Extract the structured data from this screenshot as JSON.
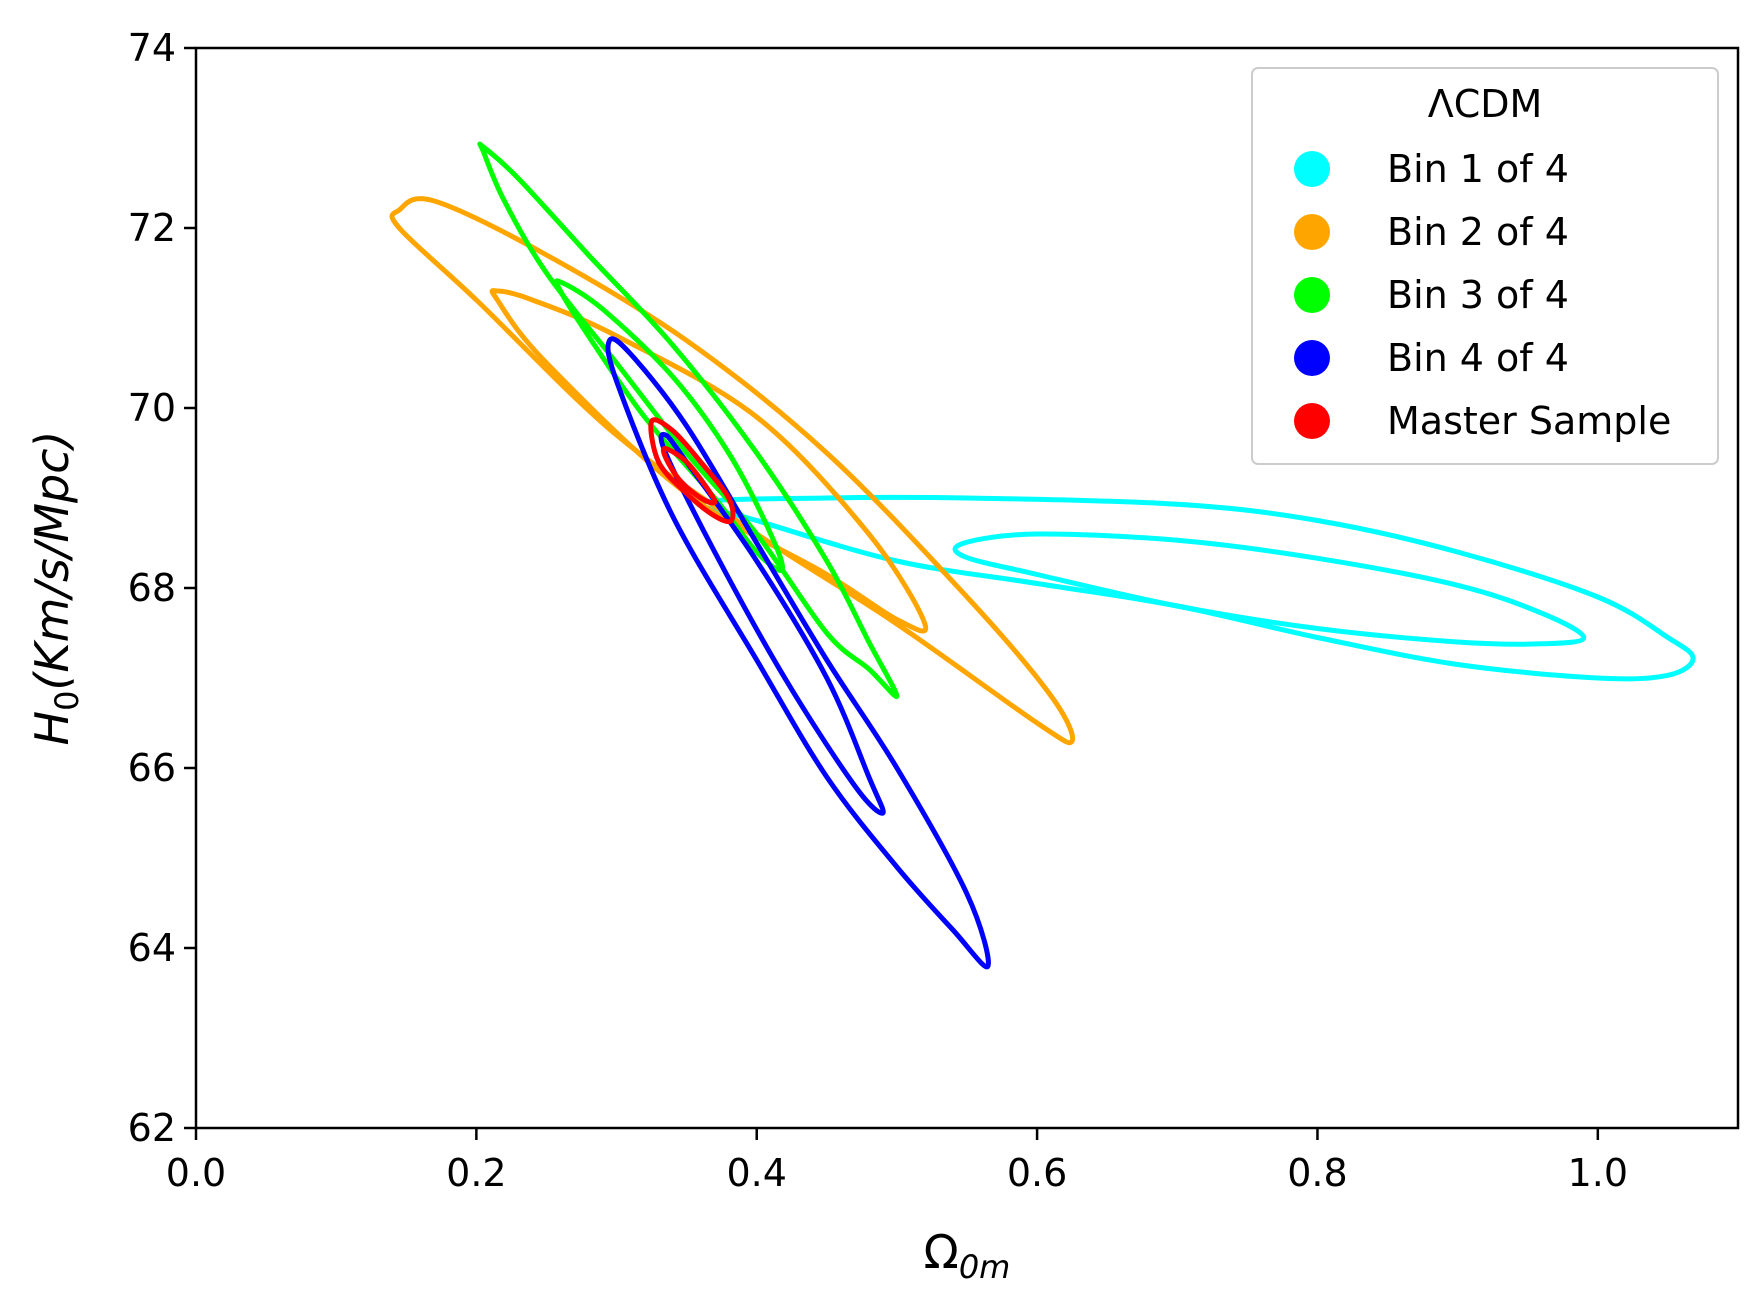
{
  "chart_data": {
    "type": "contour",
    "title": "",
    "xlabel": "Ω",
    "xlabel_sub": "0m",
    "ylabel_prefix": "H",
    "ylabel_sub": "0",
    "ylabel_suffix": "(Km/s/Mpc)",
    "xlim": [
      0.0,
      1.1
    ],
    "ylim": [
      62,
      74
    ],
    "xticks": [
      0.0,
      0.2,
      0.4,
      0.6,
      0.8,
      1.0
    ],
    "xtick_labels": [
      "0.0",
      "0.2",
      "0.4",
      "0.6",
      "0.8",
      "1.0"
    ],
    "yticks": [
      62,
      64,
      66,
      68,
      70,
      72,
      74
    ],
    "ytick_labels": [
      "62",
      "64",
      "66",
      "68",
      "70",
      "72",
      "74"
    ],
    "grid": false,
    "legend": {
      "title": "ΛCDM",
      "placement": "top-right",
      "entries": [
        {
          "label": "Bin 1 of 4",
          "color": "#00ffff"
        },
        {
          "label": "Bin 2 of 4",
          "color": "#ffa500"
        },
        {
          "label": "Bin 3 of 4",
          "color": "#00ff00"
        },
        {
          "label": "Bin 4 of 4",
          "color": "#0000ff"
        },
        {
          "label": "Master Sample",
          "color": "#ff0000"
        }
      ]
    },
    "series": [
      {
        "color": "#00ffff",
        "contours": [
          [
            [
              0.548,
              68.5
            ],
            [
              0.6,
              68.6
            ],
            [
              0.7,
              68.53
            ],
            [
              0.8,
              68.33
            ],
            [
              0.9,
              68.03
            ],
            [
              0.96,
              67.72
            ],
            [
              0.99,
              67.45
            ],
            [
              0.96,
              67.38
            ],
            [
              0.9,
              67.4
            ],
            [
              0.8,
              67.55
            ],
            [
              0.7,
              67.8
            ],
            [
              0.6,
              68.15
            ],
            [
              0.548,
              68.35
            ],
            [
              0.548,
              68.5
            ]
          ],
          [
            [
              0.36,
              68.95
            ],
            [
              0.45,
              69.0
            ],
            [
              0.55,
              69.0
            ],
            [
              0.7,
              68.93
            ],
            [
              0.8,
              68.75
            ],
            [
              0.9,
              68.4
            ],
            [
              1.0,
              67.9
            ],
            [
              1.05,
              67.45
            ],
            [
              1.068,
              67.22
            ],
            [
              1.05,
              67.03
            ],
            [
              1.0,
              67.0
            ],
            [
              0.9,
              67.15
            ],
            [
              0.8,
              67.45
            ],
            [
              0.7,
              67.8
            ],
            [
              0.6,
              68.05
            ],
            [
              0.5,
              68.3
            ],
            [
              0.4,
              68.75
            ],
            [
              0.36,
              68.95
            ]
          ]
        ]
      },
      {
        "color": "#ffa500",
        "contours": [
          [
            [
              0.215,
              71.3
            ],
            [
              0.24,
              71.2
            ],
            [
              0.3,
              70.8
            ],
            [
              0.4,
              69.9
            ],
            [
              0.48,
              68.6
            ],
            [
              0.52,
              67.6
            ],
            [
              0.5,
              67.65
            ],
            [
              0.45,
              68.15
            ],
            [
              0.35,
              69.05
            ],
            [
              0.25,
              70.5
            ],
            [
              0.215,
              71.2
            ],
            [
              0.215,
              71.3
            ]
          ],
          [
            [
              0.145,
              72.2
            ],
            [
              0.17,
              72.3
            ],
            [
              0.25,
              71.7
            ],
            [
              0.35,
              70.75
            ],
            [
              0.45,
              69.5
            ],
            [
              0.55,
              67.9
            ],
            [
              0.61,
              66.8
            ],
            [
              0.625,
              66.3
            ],
            [
              0.6,
              66.5
            ],
            [
              0.5,
              67.6
            ],
            [
              0.4,
              68.6
            ],
            [
              0.3,
              69.7
            ],
            [
              0.2,
              71.2
            ],
            [
              0.145,
              72.0
            ],
            [
              0.145,
              72.2
            ]
          ]
        ]
      },
      {
        "color": "#00ff00",
        "contours": [
          [
            [
              0.26,
              71.4
            ],
            [
              0.29,
              71.1
            ],
            [
              0.34,
              70.35
            ],
            [
              0.38,
              69.5
            ],
            [
              0.41,
              68.6
            ],
            [
              0.418,
              68.2
            ],
            [
              0.4,
              68.4
            ],
            [
              0.37,
              69.0
            ],
            [
              0.32,
              69.9
            ],
            [
              0.28,
              70.8
            ],
            [
              0.26,
              71.3
            ],
            [
              0.26,
              71.4
            ]
          ],
          [
            [
              0.205,
              72.9
            ],
            [
              0.23,
              72.55
            ],
            [
              0.28,
              71.7
            ],
            [
              0.34,
              70.7
            ],
            [
              0.4,
              69.5
            ],
            [
              0.45,
              68.3
            ],
            [
              0.48,
              67.4
            ],
            [
              0.5,
              66.8
            ],
            [
              0.48,
              67.1
            ],
            [
              0.45,
              67.5
            ],
            [
              0.4,
              68.6
            ],
            [
              0.35,
              69.5
            ],
            [
              0.3,
              70.5
            ],
            [
              0.25,
              71.5
            ],
            [
              0.22,
              72.3
            ],
            [
              0.205,
              72.85
            ]
          ]
        ]
      },
      {
        "color": "#0000ff",
        "contours": [
          [
            [
              0.335,
              69.7
            ],
            [
              0.35,
              69.4
            ],
            [
              0.4,
              68.3
            ],
            [
              0.45,
              67.0
            ],
            [
              0.48,
              65.9
            ],
            [
              0.49,
              65.5
            ],
            [
              0.47,
              65.8
            ],
            [
              0.42,
              67.0
            ],
            [
              0.37,
              68.4
            ],
            [
              0.335,
              69.5
            ],
            [
              0.335,
              69.7
            ]
          ],
          [
            [
              0.295,
              70.75
            ],
            [
              0.31,
              70.6
            ],
            [
              0.35,
              69.8
            ],
            [
              0.4,
              68.5
            ],
            [
              0.45,
              67.2
            ],
            [
              0.5,
              66.0
            ],
            [
              0.55,
              64.6
            ],
            [
              0.565,
              63.8
            ],
            [
              0.54,
              64.2
            ],
            [
              0.5,
              64.9
            ],
            [
              0.45,
              65.9
            ],
            [
              0.4,
              67.2
            ],
            [
              0.34,
              68.8
            ],
            [
              0.3,
              70.3
            ],
            [
              0.295,
              70.75
            ]
          ]
        ]
      },
      {
        "color": "#ff0000",
        "contours": [
          [
            [
              0.335,
              69.55
            ],
            [
              0.35,
              69.4
            ],
            [
              0.365,
              69.1
            ],
            [
              0.37,
              68.95
            ],
            [
              0.36,
              69.0
            ],
            [
              0.345,
              69.2
            ],
            [
              0.335,
              69.45
            ],
            [
              0.335,
              69.55
            ]
          ],
          [
            [
              0.325,
              69.85
            ],
            [
              0.34,
              69.75
            ],
            [
              0.36,
              69.4
            ],
            [
              0.38,
              69.0
            ],
            [
              0.382,
              68.75
            ],
            [
              0.37,
              68.8
            ],
            [
              0.35,
              69.05
            ],
            [
              0.33,
              69.4
            ],
            [
              0.325,
              69.85
            ]
          ]
        ]
      }
    ]
  }
}
